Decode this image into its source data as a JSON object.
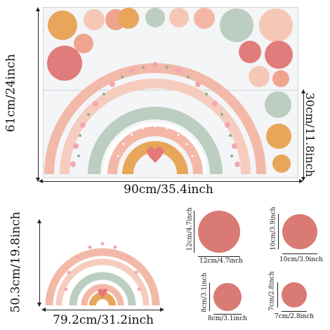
{
  "colors": {
    "mustard": "#e8a65a",
    "blush": "#f4b7a6",
    "peach": "#f5c8b6",
    "sage": "#bccdc2",
    "rose": "#e07c7c",
    "coral": "#d97a74",
    "pink_light": "#f6d3ca",
    "heart": "#e57878"
  },
  "main_sticker": {
    "height_label": "61cm/24inch",
    "width_label": "90cm/35.4inch",
    "lower_height_label": "30cm/11.8inch"
  },
  "small_rainbow": {
    "height_label": "50.3cm/19.8inch",
    "width_label": "79.2cm/31.2inch"
  },
  "circles": [
    {
      "width_label": "12cm/4.7inch",
      "height_label": "12cm/4.7inch"
    },
    {
      "width_label": "10cm/3.9inch",
      "height_label": "10cm/3.9inch"
    },
    {
      "width_label": "8cm/3.1inch",
      "height_label": "8cm/3.1inch"
    },
    {
      "width_label": "7cm/2.8inch",
      "height_label": "7cm/2.8inch"
    }
  ]
}
